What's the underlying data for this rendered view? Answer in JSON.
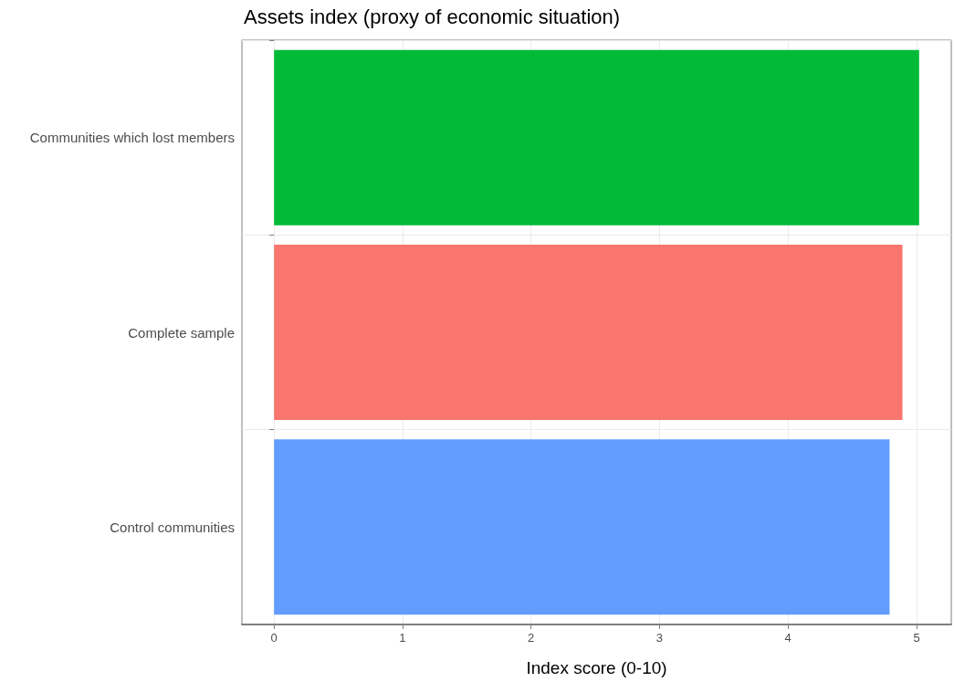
{
  "chart_data": {
    "type": "bar",
    "orientation": "horizontal",
    "title": "Assets index (proxy of economic situation)",
    "xlabel": "Index score (0-10)",
    "categories": [
      "Communities which lost members",
      "Complete sample",
      "Control communities"
    ],
    "values": [
      5.02,
      4.89,
      4.79
    ],
    "colors": [
      "#00ba38",
      "#f8766d",
      "#619cff"
    ],
    "xlim": [
      -0.25,
      5.27
    ],
    "xticks": [
      0,
      1,
      2,
      3,
      4,
      5
    ],
    "grid": true
  }
}
